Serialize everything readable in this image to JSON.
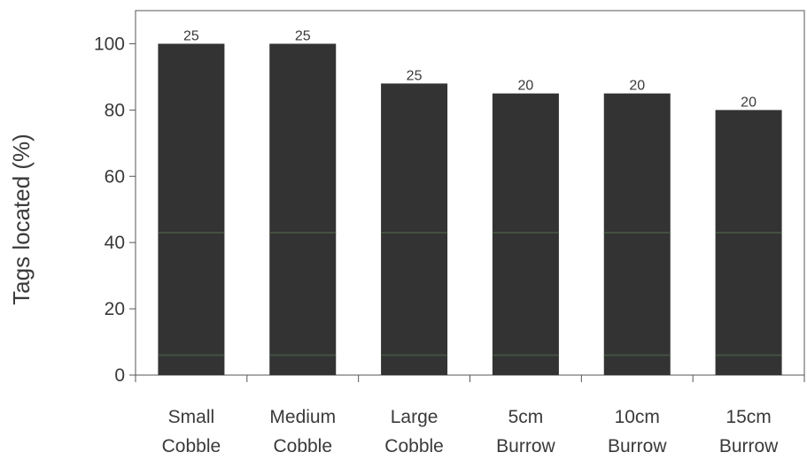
{
  "chart_data": {
    "type": "bar",
    "ylabel": "Tags located (%)",
    "xlabel": "",
    "ylim": [
      0,
      110
    ],
    "yticks": [
      0,
      20,
      40,
      60,
      80,
      100
    ],
    "categories": [
      [
        "Small",
        "Cobble"
      ],
      [
        "Medium",
        "Cobble"
      ],
      [
        "Large",
        "Cobble"
      ],
      [
        "5cm",
        "Burrow"
      ],
      [
        "10cm",
        "Burrow"
      ],
      [
        "15cm",
        "Burrow"
      ]
    ],
    "values": [
      100,
      100,
      88,
      85,
      85,
      80
    ],
    "bar_labels": [
      "25",
      "25",
      "25",
      "20",
      "20",
      "20"
    ],
    "grid": false,
    "colors": {
      "bar": "#333333",
      "bar_stripe": "#4a5e45",
      "axis": "#555555",
      "text": "#3a3a3a"
    }
  }
}
